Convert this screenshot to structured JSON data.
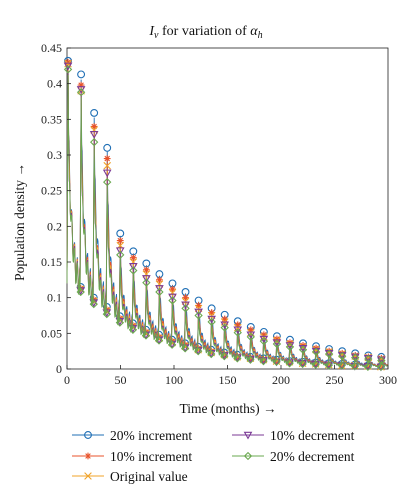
{
  "chart_data": {
    "type": "line",
    "title": {
      "main": "I",
      "sub": "v",
      "middle": " for variation of ",
      "greek": "α",
      "greek_sub": "h"
    },
    "xlabel": "Time (months) →",
    "ylabel": "Population density →",
    "xlim": [
      0,
      300
    ],
    "ylim": [
      0,
      0.45
    ],
    "xticks": [
      "0",
      "50",
      "100",
      "150",
      "200",
      "250",
      "300"
    ],
    "yticks": [
      "0",
      "0.05",
      "0.1",
      "0.15",
      "0.2",
      "0.25",
      "0.3",
      "0.35",
      "0.4",
      "0.45"
    ],
    "grid": false,
    "legend_position": "bottom",
    "period_months": 12.2,
    "series": [
      {
        "name": "20% increment",
        "color": "#1f6fb5",
        "marker": "circle",
        "peaks": [
          0.432,
          0.413,
          0.359,
          0.31,
          0.19,
          0.165,
          0.148,
          0.133,
          0.12,
          0.108,
          0.096,
          0.085,
          0.076,
          0.067,
          0.059,
          0.052,
          0.046,
          0.041,
          0.036,
          0.032,
          0.028,
          0.025,
          0.022,
          0.019,
          0.017
        ],
        "troughs": [
          0.0,
          0.115,
          0.1,
          0.087,
          0.074,
          0.064,
          0.055,
          0.048,
          0.041,
          0.036,
          0.031,
          0.027,
          0.023,
          0.02,
          0.017,
          0.015,
          0.013,
          0.011,
          0.01,
          0.009,
          0.008,
          0.007,
          0.006,
          0.005,
          0.004
        ]
      },
      {
        "name": "10% increment",
        "color": "#e8532b",
        "marker": "asterisk",
        "peaks": [
          0.43,
          0.398,
          0.34,
          0.295,
          0.18,
          0.156,
          0.139,
          0.125,
          0.112,
          0.1,
          0.089,
          0.079,
          0.07,
          0.062,
          0.055,
          0.048,
          0.042,
          0.037,
          0.033,
          0.029,
          0.025,
          0.022,
          0.019,
          0.017,
          0.015
        ],
        "troughs": [
          0.0,
          0.113,
          0.097,
          0.083,
          0.071,
          0.061,
          0.052,
          0.045,
          0.039,
          0.034,
          0.029,
          0.025,
          0.021,
          0.018,
          0.016,
          0.014,
          0.012,
          0.01,
          0.009,
          0.008,
          0.007,
          0.006,
          0.005,
          0.004,
          0.004
        ]
      },
      {
        "name": "Original value",
        "color": "#f0a32a",
        "marker": "cross",
        "peaks": [
          0.428,
          0.39,
          0.335,
          0.285,
          0.173,
          0.15,
          0.133,
          0.119,
          0.107,
          0.095,
          0.085,
          0.075,
          0.066,
          0.058,
          0.051,
          0.045,
          0.04,
          0.035,
          0.031,
          0.027,
          0.024,
          0.021,
          0.018,
          0.016,
          0.014
        ],
        "troughs": [
          0.0,
          0.112,
          0.095,
          0.081,
          0.069,
          0.059,
          0.05,
          0.043,
          0.037,
          0.032,
          0.027,
          0.023,
          0.02,
          0.017,
          0.015,
          0.013,
          0.011,
          0.01,
          0.008,
          0.007,
          0.006,
          0.005,
          0.005,
          0.004,
          0.003
        ]
      },
      {
        "name": "10% decrement",
        "color": "#7b3a96",
        "marker": "triangle-down",
        "peaks": [
          0.425,
          0.392,
          0.329,
          0.275,
          0.166,
          0.144,
          0.127,
          0.113,
          0.101,
          0.09,
          0.08,
          0.07,
          0.062,
          0.055,
          0.048,
          0.042,
          0.037,
          0.033,
          0.029,
          0.025,
          0.022,
          0.019,
          0.017,
          0.015,
          0.013
        ],
        "troughs": [
          0.0,
          0.11,
          0.093,
          0.079,
          0.067,
          0.057,
          0.048,
          0.041,
          0.035,
          0.03,
          0.026,
          0.022,
          0.019,
          0.016,
          0.014,
          0.012,
          0.01,
          0.009,
          0.008,
          0.007,
          0.006,
          0.005,
          0.004,
          0.004,
          0.003
        ]
      },
      {
        "name": "20% decrement",
        "color": "#6aa84f",
        "marker": "diamond",
        "peaks": [
          0.42,
          0.388,
          0.318,
          0.262,
          0.16,
          0.138,
          0.121,
          0.108,
          0.096,
          0.085,
          0.075,
          0.066,
          0.058,
          0.051,
          0.045,
          0.039,
          0.035,
          0.031,
          0.027,
          0.024,
          0.021,
          0.018,
          0.016,
          0.014,
          0.012
        ],
        "troughs": [
          0.0,
          0.108,
          0.091,
          0.077,
          0.065,
          0.055,
          0.047,
          0.04,
          0.034,
          0.029,
          0.025,
          0.021,
          0.018,
          0.015,
          0.013,
          0.011,
          0.01,
          0.008,
          0.007,
          0.006,
          0.005,
          0.005,
          0.004,
          0.003,
          0.003
        ]
      }
    ]
  }
}
